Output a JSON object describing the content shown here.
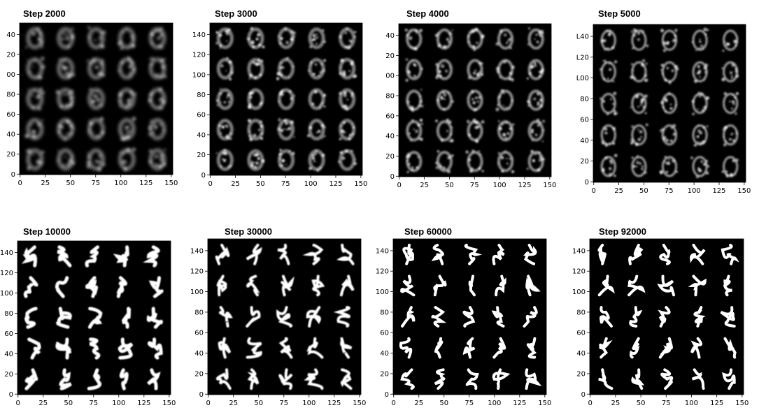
{
  "chart_data": [
    {
      "type": "image",
      "title": "Step 2000",
      "xlim": [
        -0.5,
        151.5
      ],
      "ylim": [
        151.5,
        -0.5
      ],
      "xticks": [
        0,
        25,
        50,
        75,
        100,
        125,
        150
      ],
      "yticks": [
        0,
        20,
        40,
        60,
        80,
        {
          "value": 100,
          "label": "00"
        },
        {
          "value": 120,
          "label": "20"
        },
        {
          "value": 140,
          "label": "40"
        }
      ]
    },
    {
      "type": "image",
      "title": "Step 3000",
      "xlim": [
        -0.5,
        151.5
      ],
      "ylim": [
        151.5,
        -0.5
      ],
      "xticks": [
        0,
        25,
        50,
        75,
        100,
        125,
        150
      ],
      "yticks": [
        0,
        20,
        40,
        60,
        80,
        100,
        120,
        140
      ]
    },
    {
      "type": "image",
      "title": "Step 4000",
      "xlim": [
        -0.5,
        151.5
      ],
      "ylim": [
        151.5,
        -0.5
      ],
      "xticks": [
        0,
        25,
        50,
        75,
        100,
        125,
        150
      ],
      "yticks": [
        0,
        20,
        40,
        60,
        80,
        {
          "value": 100,
          "label": "00"
        },
        {
          "value": 120,
          "label": "20"
        },
        {
          "value": 140,
          "label": "40"
        }
      ]
    },
    {
      "type": "image",
      "title": "Step 5000",
      "xlim": [
        -0.5,
        151.5
      ],
      "ylim": [
        151.5,
        -0.5
      ],
      "xticks": [
        0,
        25,
        50,
        75,
        100,
        125,
        150
      ],
      "yticks": [
        0,
        20,
        40,
        60,
        80,
        {
          "value": 100,
          "label": "L00"
        },
        {
          "value": 120,
          "label": "L20"
        },
        {
          "value": 140,
          "label": "L40"
        }
      ]
    },
    {
      "type": "image",
      "title": "Step 10000",
      "xlim": [
        -0.5,
        151.5
      ],
      "ylim": [
        151.5,
        -0.5
      ],
      "xticks": [
        0,
        25,
        50,
        75,
        100,
        125,
        150
      ],
      "yticks": [
        0,
        20,
        40,
        60,
        80,
        100,
        120,
        140
      ]
    },
    {
      "type": "image",
      "title": "Step 30000",
      "xlim": [
        -0.5,
        151.5
      ],
      "ylim": [
        151.5,
        -0.5
      ],
      "xticks": [
        0,
        25,
        50,
        75,
        100,
        125,
        150
      ],
      "yticks": [
        0,
        20,
        40,
        60,
        80,
        100,
        120,
        140
      ]
    },
    {
      "type": "image",
      "title": "Step 60000",
      "xlim": [
        -0.5,
        151.5
      ],
      "ylim": [
        151.5,
        -0.5
      ],
      "xticks": [
        0,
        25,
        50,
        75,
        100,
        125,
        150
      ],
      "yticks": [
        0,
        20,
        40,
        60,
        80,
        100,
        120,
        140
      ]
    },
    {
      "type": "image",
      "title": "Step 92000",
      "xlim": [
        -0.5,
        151.5
      ],
      "ylim": [
        151.5,
        -0.5
      ],
      "xticks": [
        0,
        25,
        50,
        75,
        100,
        125,
        150
      ],
      "yticks": [
        0,
        20,
        40,
        60,
        80,
        100,
        120,
        140
      ]
    }
  ]
}
